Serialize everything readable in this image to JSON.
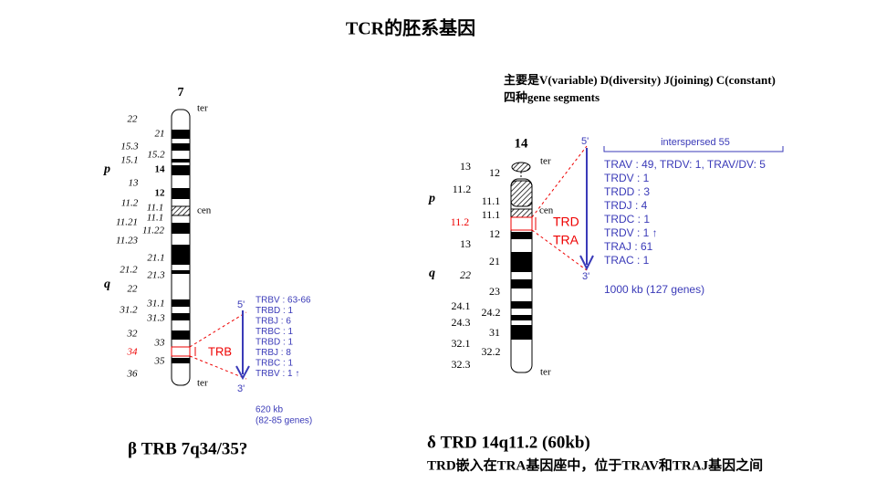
{
  "title": "TCR的胚系基因",
  "note": [
    "主要是V(variable) D(diversity) J(joining) C(constant)",
    "四种gene segments"
  ],
  "chr7": {
    "name": "7",
    "arms": [
      "p",
      "q"
    ],
    "top": "ter",
    "cen": "cen",
    "bottom": "ter",
    "left_bands": [
      "22",
      "15.3",
      "15.1",
      "13",
      "11.2",
      "11.21",
      "11.23",
      "21.2",
      "22",
      "31.2",
      "32",
      "34",
      "36"
    ],
    "right_bands": [
      "21",
      "15.2",
      "14",
      "12",
      "11.1",
      "11.1",
      "11.22",
      "21.1",
      "21.3",
      "31.1",
      "31.3",
      "33",
      "35"
    ],
    "locus": {
      "label": "TRB",
      "five": "5'",
      "three": "3'",
      "genes": [
        "TRBV : 63-66",
        "TRBD : 1",
        "TRBJ : 6",
        "TRBC : 1",
        "TRBD : 1",
        "TRBJ : 8",
        "TRBC : 1",
        "TRBV : 1 ↑"
      ],
      "size": "620 kb",
      "count": "(82-85 genes)"
    }
  },
  "caption7": "β  TRB 7q34/35?",
  "chr14": {
    "name": "14",
    "arms": [
      "p",
      "q"
    ],
    "top": "ter",
    "cen": "cen",
    "bottom": "ter",
    "left_bands": [
      "13",
      "11.2",
      "11.1",
      "11.1",
      "11.2",
      "13",
      "22",
      "24.1",
      "24.3",
      "32.1",
      "32.3"
    ],
    "right_bands": [
      "12",
      "12",
      "21",
      "23",
      "24.2",
      "31",
      "32.2"
    ],
    "locus": {
      "labels": [
        "TRD",
        "TRA"
      ],
      "five": "5'",
      "three": "3'",
      "interspersed": "interspersed 55",
      "genes": [
        "TRAV : 49, TRDV: 1, TRAV/DV: 5",
        "TRDV : 1",
        "TRDD : 3",
        "TRDJ : 4",
        "TRDC : 1",
        "TRDV : 1 ↑",
        "TRAJ : 61",
        "TRAC : 1"
      ],
      "size": "1000 kb (127 genes)"
    }
  },
  "caption14": [
    "δ TRD 14q11.2  (60kb)",
    "TRD嵌入在TRA基因座中，位于TRAV和TRAJ基因之间"
  ]
}
